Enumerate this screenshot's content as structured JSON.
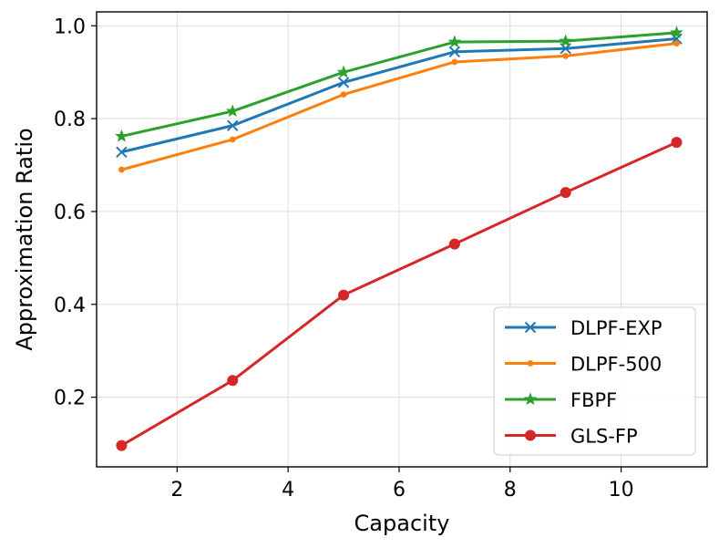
{
  "chart_data": {
    "type": "line",
    "xlabel": "Capacity",
    "ylabel": "Approximation Ratio",
    "xlim": [
      0.55,
      11.55
    ],
    "ylim": [
      0.05,
      1.03
    ],
    "xticks": [
      2,
      4,
      6,
      8,
      10
    ],
    "yticks": [
      0.2,
      0.4,
      0.6,
      0.8,
      1.0
    ],
    "xtick_labels": [
      "2",
      "4",
      "6",
      "8",
      "10"
    ],
    "ytick_labels": [
      "0.2",
      "0.4",
      "0.6",
      "0.8",
      "1.0"
    ],
    "grid": true,
    "legend_position": "lower-right",
    "x": [
      1,
      3,
      5,
      7,
      9,
      11
    ],
    "series": [
      {
        "name": "DLPF-EXP",
        "values": [
          0.728,
          0.785,
          0.878,
          0.944,
          0.951,
          0.972
        ],
        "color": "#1f77b4",
        "marker": "x"
      },
      {
        "name": "DLPF-500",
        "values": [
          0.69,
          0.755,
          0.852,
          0.922,
          0.935,
          0.962
        ],
        "color": "#ff7f0e",
        "marker": "small-dot"
      },
      {
        "name": "FBPF",
        "values": [
          0.762,
          0.816,
          0.9,
          0.965,
          0.967,
          0.985
        ],
        "color": "#2ca02c",
        "marker": "star"
      },
      {
        "name": "GLS-FP",
        "values": [
          0.096,
          0.236,
          0.42,
          0.53,
          0.641,
          0.749
        ],
        "color": "#d62728",
        "marker": "dot"
      }
    ]
  }
}
